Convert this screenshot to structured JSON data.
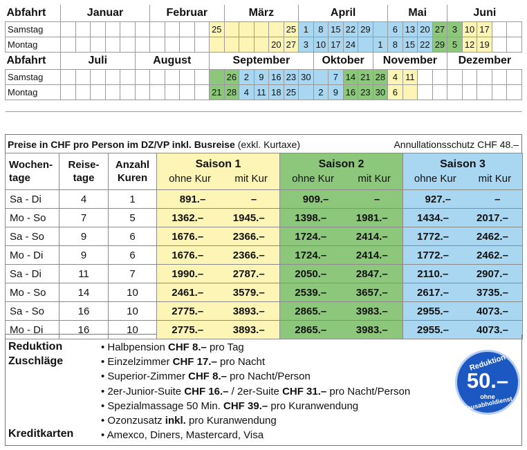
{
  "calendar": {
    "header_label": "Abfahrt",
    "first_half": {
      "months": [
        "Januar",
        "Februar",
        "März",
        "April",
        "Mai",
        "Juni"
      ],
      "rows": [
        {
          "label": "Samstag",
          "cells": [
            {
              "v": "",
              "s": ""
            },
            {
              "v": "",
              "s": ""
            },
            {
              "v": "",
              "s": ""
            },
            {
              "v": "",
              "s": ""
            },
            {
              "v": "",
              "s": ""
            },
            {
              "v": "",
              "s": ""
            },
            {
              "v": "",
              "s": ""
            },
            {
              "v": "",
              "s": ""
            },
            {
              "v": "",
              "s": ""
            },
            {
              "v": "",
              "s": ""
            },
            {
              "v": "25",
              "s": "y"
            },
            {
              "v": "",
              "s": "y"
            },
            {
              "v": "",
              "s": "y"
            },
            {
              "v": "",
              "s": "y"
            },
            {
              "v": "",
              "s": "y"
            },
            {
              "v": "25",
              "s": "y"
            },
            {
              "v": "1",
              "s": "b"
            },
            {
              "v": "8",
              "s": "b"
            },
            {
              "v": "15",
              "s": "b"
            },
            {
              "v": "22",
              "s": "b"
            },
            {
              "v": "29",
              "s": "b"
            },
            {
              "v": "",
              "s": "b"
            },
            {
              "v": "6",
              "s": "b"
            },
            {
              "v": "13",
              "s": "b"
            },
            {
              "v": "20",
              "s": "b"
            },
            {
              "v": "27",
              "s": "g"
            },
            {
              "v": "3",
              "s": "g"
            },
            {
              "v": "10",
              "s": "y"
            },
            {
              "v": "17",
              "s": "y"
            },
            {
              "v": "",
              "s": ""
            },
            {
              "v": "",
              "s": ""
            }
          ]
        },
        {
          "label": "Montag",
          "cells": [
            {
              "v": "",
              "s": ""
            },
            {
              "v": "",
              "s": ""
            },
            {
              "v": "",
              "s": ""
            },
            {
              "v": "",
              "s": ""
            },
            {
              "v": "",
              "s": ""
            },
            {
              "v": "",
              "s": ""
            },
            {
              "v": "",
              "s": ""
            },
            {
              "v": "",
              "s": ""
            },
            {
              "v": "",
              "s": ""
            },
            {
              "v": "",
              "s": ""
            },
            {
              "v": "",
              "s": "y"
            },
            {
              "v": "",
              "s": "y"
            },
            {
              "v": "",
              "s": "y"
            },
            {
              "v": "",
              "s": "y"
            },
            {
              "v": "20",
              "s": "y"
            },
            {
              "v": "27",
              "s": "y"
            },
            {
              "v": "3",
              "s": "b"
            },
            {
              "v": "10",
              "s": "b"
            },
            {
              "v": "17",
              "s": "b"
            },
            {
              "v": "24",
              "s": "b"
            },
            {
              "v": "",
              "s": "b"
            },
            {
              "v": "1",
              "s": "b"
            },
            {
              "v": "8",
              "s": "b"
            },
            {
              "v": "15",
              "s": "b"
            },
            {
              "v": "22",
              "s": "b"
            },
            {
              "v": "29",
              "s": "g"
            },
            {
              "v": "5",
              "s": "g"
            },
            {
              "v": "12",
              "s": "y"
            },
            {
              "v": "19",
              "s": "y"
            },
            {
              "v": "",
              "s": ""
            },
            {
              "v": "",
              "s": ""
            }
          ]
        }
      ]
    },
    "second_half": {
      "months": [
        "Juli",
        "August",
        "September",
        "Oktober",
        "November",
        "Dezember"
      ],
      "rows": [
        {
          "label": "Samstag",
          "cells": [
            {
              "v": "",
              "s": ""
            },
            {
              "v": "",
              "s": ""
            },
            {
              "v": "",
              "s": ""
            },
            {
              "v": "",
              "s": ""
            },
            {
              "v": "",
              "s": ""
            },
            {
              "v": "",
              "s": ""
            },
            {
              "v": "",
              "s": ""
            },
            {
              "v": "",
              "s": ""
            },
            {
              "v": "",
              "s": ""
            },
            {
              "v": "",
              "s": ""
            },
            {
              "v": "",
              "s": "g"
            },
            {
              "v": "26",
              "s": "g"
            },
            {
              "v": "2",
              "s": "b"
            },
            {
              "v": "9",
              "s": "b"
            },
            {
              "v": "16",
              "s": "b"
            },
            {
              "v": "23",
              "s": "b"
            },
            {
              "v": "30",
              "s": "b"
            },
            {
              "v": "",
              "s": "b"
            },
            {
              "v": "7",
              "s": "b"
            },
            {
              "v": "14",
              "s": "g"
            },
            {
              "v": "21",
              "s": "g"
            },
            {
              "v": "28",
              "s": "g"
            },
            {
              "v": "4",
              "s": "y"
            },
            {
              "v": "11",
              "s": "y"
            },
            {
              "v": "",
              "s": ""
            },
            {
              "v": "",
              "s": ""
            },
            {
              "v": "",
              "s": ""
            },
            {
              "v": "",
              "s": ""
            },
            {
              "v": "",
              "s": ""
            },
            {
              "v": "",
              "s": ""
            },
            {
              "v": "",
              "s": ""
            }
          ]
        },
        {
          "label": "Montag",
          "cells": [
            {
              "v": "",
              "s": ""
            },
            {
              "v": "",
              "s": ""
            },
            {
              "v": "",
              "s": ""
            },
            {
              "v": "",
              "s": ""
            },
            {
              "v": "",
              "s": ""
            },
            {
              "v": "",
              "s": ""
            },
            {
              "v": "",
              "s": ""
            },
            {
              "v": "",
              "s": ""
            },
            {
              "v": "",
              "s": ""
            },
            {
              "v": "",
              "s": ""
            },
            {
              "v": "21",
              "s": "g"
            },
            {
              "v": "28",
              "s": "g"
            },
            {
              "v": "4",
              "s": "b"
            },
            {
              "v": "11",
              "s": "b"
            },
            {
              "v": "18",
              "s": "b"
            },
            {
              "v": "25",
              "s": "b"
            },
            {
              "v": "",
              "s": "b"
            },
            {
              "v": "2",
              "s": "b"
            },
            {
              "v": "9",
              "s": "b"
            },
            {
              "v": "16",
              "s": "g"
            },
            {
              "v": "23",
              "s": "g"
            },
            {
              "v": "30",
              "s": "g"
            },
            {
              "v": "6",
              "s": "y"
            },
            {
              "v": "",
              "s": "y"
            },
            {
              "v": "",
              "s": ""
            },
            {
              "v": "",
              "s": ""
            },
            {
              "v": "",
              "s": ""
            },
            {
              "v": "",
              "s": ""
            },
            {
              "v": "",
              "s": ""
            },
            {
              "v": "",
              "s": ""
            },
            {
              "v": "",
              "s": ""
            }
          ]
        }
      ]
    }
  },
  "prices": {
    "title_bold": "Preise in CHF pro Person im DZ/VP inkl. Busreise",
    "title_normal": "(exkl. Kurtaxe)",
    "annullation": "Annullationsschutz CHF 48.–",
    "headers": {
      "wochentage": [
        "Wochen-",
        "tage"
      ],
      "reisetage": [
        "Reise-",
        "tage"
      ],
      "kuren": [
        "Anzahl",
        "Kuren"
      ],
      "seasons": [
        "Saison 1",
        "Saison 2",
        "Saison 3"
      ],
      "ohne": "ohne Kur",
      "mit": "mit Kur"
    },
    "rows": [
      {
        "days": "Sa - Di",
        "reise": "4",
        "kuren": "1",
        "p": [
          "891.–",
          "–",
          "909.–",
          "–",
          "927.–",
          "–"
        ]
      },
      {
        "days": "Mo - So",
        "reise": "7",
        "kuren": "5",
        "p": [
          "1362.–",
          "1945.–",
          "1398.–",
          "1981.–",
          "1434.–",
          "2017.–"
        ]
      },
      {
        "days": "Sa - So",
        "reise": "9",
        "kuren": "6",
        "p": [
          "1676.–",
          "2366.–",
          "1724.–",
          "2414.–",
          "1772.–",
          "2462.–"
        ]
      },
      {
        "days": "Mo - Di",
        "reise": "9",
        "kuren": "6",
        "p": [
          "1676.–",
          "2366.–",
          "1724.–",
          "2414.–",
          "1772.–",
          "2462.–"
        ]
      },
      {
        "days": "Sa - Di",
        "reise": "11",
        "kuren": "7",
        "p": [
          "1990.–",
          "2787.–",
          "2050.–",
          "2847.–",
          "2110.–",
          "2907.–"
        ]
      },
      {
        "days": "Mo - So",
        "reise": "14",
        "kuren": "10",
        "p": [
          "2461.–",
          "3579.–",
          "2539.–",
          "3657.–",
          "2617.–",
          "3735.–"
        ]
      },
      {
        "days": "Sa - So",
        "reise": "16",
        "kuren": "10",
        "p": [
          "2775.–",
          "3893.–",
          "2865.–",
          "3983.–",
          "2955.–",
          "4073.–"
        ]
      },
      {
        "days": "Mo - Di",
        "reise": "16",
        "kuren": "10",
        "p": [
          "2775.–",
          "3893.–",
          "2865.–",
          "3983.–",
          "2955.–",
          "4073.–"
        ]
      }
    ]
  },
  "extras": {
    "label_reduktion": "Reduktion",
    "label_zuschlaege": "Zuschläge",
    "label_kreditkarten": "Kreditkarten",
    "items": [
      [
        {
          "t": "Halbpension ",
          "b": false
        },
        {
          "t": "CHF 8.–",
          "b": true
        },
        {
          "t": " pro Tag",
          "b": false
        }
      ],
      [
        {
          "t": "Einzelzimmer ",
          "b": false
        },
        {
          "t": "CHF 17.–",
          "b": true
        },
        {
          "t": " pro Nacht",
          "b": false
        }
      ],
      [
        {
          "t": "Superior-Zimmer ",
          "b": false
        },
        {
          "t": "CHF 8.–",
          "b": true
        },
        {
          "t": " pro Nacht/Person",
          "b": false
        }
      ],
      [
        {
          "t": "2er-Junior-Suite ",
          "b": false
        },
        {
          "t": "CHF 16.–",
          "b": true
        },
        {
          "t": " / 2er-Suite ",
          "b": false
        },
        {
          "t": "CHF 31.–",
          "b": true
        },
        {
          "t": " pro Nacht/Person",
          "b": false
        }
      ],
      [
        {
          "t": "Spezialmassage 50 Min. ",
          "b": false
        },
        {
          "t": "CHF 39.–",
          "b": true
        },
        {
          "t": " pro Kuranwendung",
          "b": false
        }
      ],
      [
        {
          "t": "Ozonzusatz ",
          "b": false
        },
        {
          "t": "inkl.",
          "b": true
        },
        {
          "t": " pro Kuranwendung",
          "b": false
        }
      ]
    ],
    "credit_cards": "Amexco, Diners, Mastercard, Visa",
    "bullet": "•",
    "badge": {
      "top": "Reduktion",
      "amount": "50.–",
      "ohne": "ohne",
      "bottom": "Hausabholdienst"
    }
  },
  "colors": {
    "season1": "#fdf5b5",
    "season2": "#8dc77b",
    "season3": "#a9d6f0"
  }
}
